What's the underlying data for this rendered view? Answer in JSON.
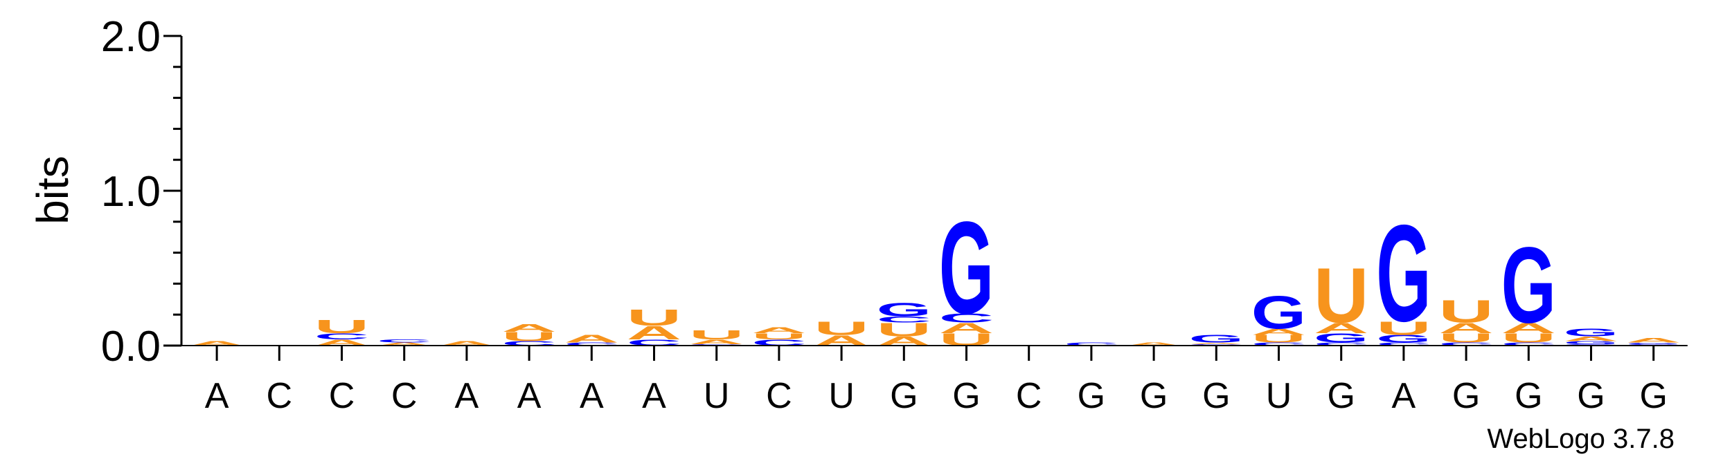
{
  "chart_data": {
    "type": "sequence-logo",
    "ylabel": "bits",
    "ylim": [
      0,
      2.0
    ],
    "yticks": [
      {
        "value": 0.0,
        "label": "0.0"
      },
      {
        "value": 1.0,
        "label": "1.0"
      },
      {
        "value": 2.0,
        "label": "2.0"
      }
    ],
    "xticklabels": [
      "A",
      "C",
      "C",
      "C",
      "A",
      "A",
      "A",
      "A",
      "U",
      "C",
      "U",
      "G",
      "G",
      "C",
      "G",
      "G",
      "G",
      "U",
      "G",
      "A",
      "G",
      "G",
      "G",
      "G"
    ],
    "colors": {
      "A": "#f7941d",
      "U": "#f7941d",
      "G": "#0000ff",
      "C": "#0000ff"
    },
    "columns": [
      [
        [
          "A",
          0.03
        ]
      ],
      [],
      [
        [
          "A",
          0.04
        ],
        [
          "C",
          0.04
        ],
        [
          "U",
          0.09
        ]
      ],
      [
        [
          "A",
          0.02
        ],
        [
          "C",
          0.02
        ]
      ],
      [
        [
          "A",
          0.03
        ]
      ],
      [
        [
          "C",
          0.03
        ],
        [
          "U",
          0.06
        ],
        [
          "A",
          0.05
        ]
      ],
      [
        [
          "C",
          0.02
        ],
        [
          "A",
          0.05
        ]
      ],
      [
        [
          "C",
          0.04
        ],
        [
          "A",
          0.09
        ],
        [
          "U",
          0.11
        ]
      ],
      [
        [
          "C",
          0.01
        ],
        [
          "A",
          0.03
        ],
        [
          "U",
          0.06
        ]
      ],
      [
        [
          "C",
          0.04
        ],
        [
          "U",
          0.04
        ],
        [
          "A",
          0.04
        ]
      ],
      [
        [
          "A",
          0.07
        ],
        [
          "U",
          0.09
        ]
      ],
      [
        [
          "A",
          0.06
        ],
        [
          "U",
          0.09
        ],
        [
          "C",
          0.04
        ],
        [
          "G",
          0.09
        ]
      ],
      [
        [
          "U",
          0.08
        ],
        [
          "A",
          0.07
        ],
        [
          "C",
          0.06
        ],
        [
          "G",
          0.62
        ]
      ],
      [],
      [
        [
          "C",
          0.02
        ]
      ],
      [
        [
          "A",
          0.02
        ]
      ],
      [
        [
          "C",
          0.01
        ],
        [
          "A",
          0.01
        ],
        [
          "G",
          0.05
        ]
      ],
      [
        [
          "C",
          0.02
        ],
        [
          "U",
          0.05
        ],
        [
          "A",
          0.04
        ],
        [
          "G",
          0.22
        ]
      ],
      [
        [
          "C",
          0.02
        ],
        [
          "G",
          0.06
        ],
        [
          "A",
          0.07
        ],
        [
          "U",
          0.37
        ]
      ],
      [
        [
          "C",
          0.02
        ],
        [
          "G",
          0.05
        ],
        [
          "U",
          0.09
        ],
        [
          "G",
          0.65
        ]
      ],
      [
        [
          "C",
          0.02
        ],
        [
          "U",
          0.06
        ],
        [
          "A",
          0.07
        ],
        [
          "U",
          0.15
        ]
      ],
      [
        [
          "C",
          0.02
        ],
        [
          "U",
          0.06
        ],
        [
          "A",
          0.07
        ],
        [
          "G",
          0.51
        ]
      ],
      [
        [
          "C",
          0.01
        ],
        [
          "G",
          0.02
        ],
        [
          "A",
          0.03
        ],
        [
          "G",
          0.05
        ]
      ],
      [
        [
          "C",
          0.01
        ],
        [
          "G",
          0.01
        ],
        [
          "A",
          0.03
        ]
      ]
    ]
  },
  "credit": "WebLogo 3.7.8"
}
